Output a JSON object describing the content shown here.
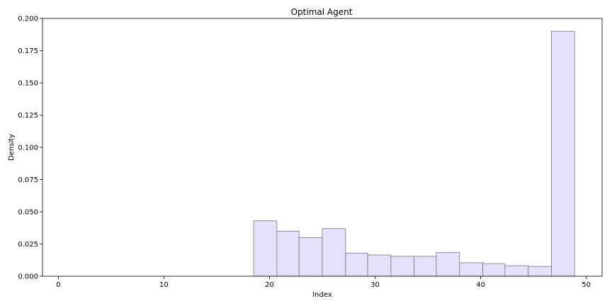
{
  "chart_data": {
    "type": "bar",
    "title": "Optimal Agent",
    "xlabel": "Index",
    "ylabel": "Density",
    "xlim": [
      -1.5,
      51.5
    ],
    "ylim": [
      0,
      0.2
    ],
    "xticks": [
      0,
      10,
      20,
      30,
      40,
      50
    ],
    "yticks": [
      0.0,
      0.025,
      0.05,
      0.075,
      0.1,
      0.125,
      0.15,
      0.175,
      0.2
    ],
    "ytick_labels": [
      "0.000",
      "0.025",
      "0.050",
      "0.075",
      "0.100",
      "0.125",
      "0.150",
      "0.175",
      "0.200"
    ],
    "grid": false,
    "bar_color": "#e6e0fa",
    "edge_color": "#7a7480",
    "bins": [
      {
        "x0": 18.5,
        "x1": 20.7,
        "value": 0.043
      },
      {
        "x0": 20.7,
        "x1": 22.8,
        "value": 0.035
      },
      {
        "x0": 22.8,
        "x1": 25.0,
        "value": 0.03
      },
      {
        "x0": 25.0,
        "x1": 27.2,
        "value": 0.037
      },
      {
        "x0": 27.2,
        "x1": 29.3,
        "value": 0.018
      },
      {
        "x0": 29.3,
        "x1": 31.5,
        "value": 0.0165
      },
      {
        "x0": 31.5,
        "x1": 33.7,
        "value": 0.0155
      },
      {
        "x0": 33.7,
        "x1": 35.8,
        "value": 0.0155
      },
      {
        "x0": 35.8,
        "x1": 38.0,
        "value": 0.0185
      },
      {
        "x0": 38.0,
        "x1": 40.2,
        "value": 0.0105
      },
      {
        "x0": 40.2,
        "x1": 42.3,
        "value": 0.0098
      },
      {
        "x0": 42.3,
        "x1": 44.5,
        "value": 0.0082
      },
      {
        "x0": 44.5,
        "x1": 46.7,
        "value": 0.0076
      },
      {
        "x0": 46.7,
        "x1": 48.9,
        "value": 0.19
      }
    ]
  }
}
